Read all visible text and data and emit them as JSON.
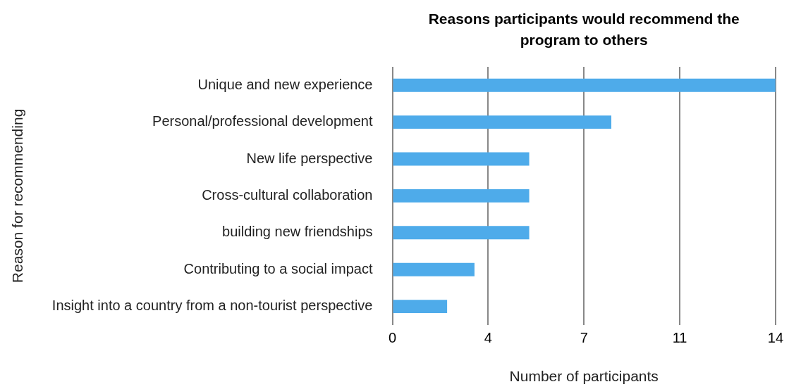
{
  "chart_data": {
    "type": "bar",
    "orientation": "horizontal",
    "title": "Reasons participants would recommend the program to others",
    "xlabel": "Number of participants",
    "ylabel": "Reason for recommending",
    "categories": [
      "Unique and new experience",
      "Personal/professional development",
      "New life perspective",
      "Cross-cultural collaboration",
      "building new friendships",
      "Contributing to a social impact",
      "Insight into a country from a non-tourist perspective"
    ],
    "values": [
      14,
      8,
      5,
      5,
      5,
      3,
      2
    ],
    "color": "#4eabea",
    "xlim": [
      0,
      14
    ],
    "xticks": [
      0,
      {
        "value": 3.5,
        "label": "4"
      },
      7,
      {
        "value": 10.5,
        "label": "11"
      },
      14
    ],
    "grid": "x",
    "legend": false
  }
}
